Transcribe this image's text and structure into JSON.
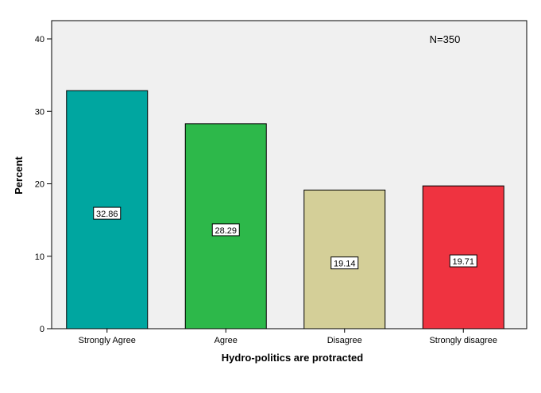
{
  "chart_data": {
    "type": "bar",
    "categories": [
      "Strongly Agree",
      "Agree",
      "Disagree",
      "Strongly disagree"
    ],
    "values": [
      32.86,
      28.29,
      19.14,
      19.71
    ],
    "data_labels": [
      "32.86",
      "28.29",
      "19.14",
      "19.71"
    ],
    "colors": [
      "#00a6a0",
      "#2db84a",
      "#d4cf98",
      "#ef3340"
    ],
    "xlabel": "Hydro-politics are protracted",
    "ylabel": "Percent",
    "ylim": [
      0,
      40
    ],
    "yticks": [
      0,
      10,
      20,
      30,
      40
    ],
    "ytick_labels": [
      "0",
      "10",
      "20",
      "30",
      "40"
    ],
    "annotation": "N=350",
    "plot_background": "#f0f0f0",
    "grid": false
  }
}
